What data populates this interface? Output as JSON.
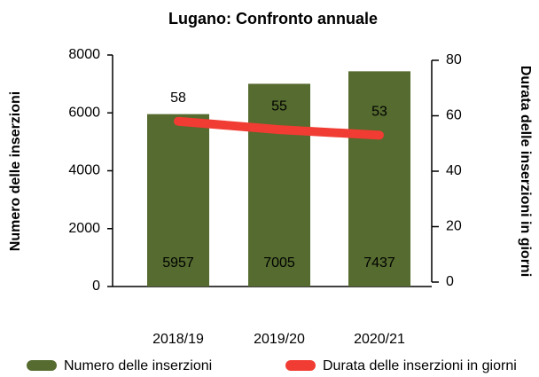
{
  "chart_data": {
    "type": "bar",
    "title": "Lugano: Confronto annuale",
    "categories": [
      "2018/19",
      "2019/20",
      "2020/21"
    ],
    "series": [
      {
        "name": "Numero delle inserzioni",
        "color": "#556b2f",
        "type": "bar",
        "values": [
          5957,
          7005,
          7437
        ]
      },
      {
        "name": "Durata delle inserzioni in giorni",
        "color": "#f03c32",
        "type": "line",
        "axis": "y2",
        "values": [
          58,
          55,
          53
        ]
      }
    ],
    "ylabel": "Numero delle inserzioni",
    "y2label": "Durata delle inserzioni in giorni",
    "ylim": [
      0,
      8000
    ],
    "yticks": [
      0,
      2000,
      4000,
      6000,
      8000
    ],
    "y2lim": [
      0,
      80
    ],
    "y2ticks": [
      0,
      20,
      40,
      60,
      80
    ],
    "legend": "bottom"
  }
}
